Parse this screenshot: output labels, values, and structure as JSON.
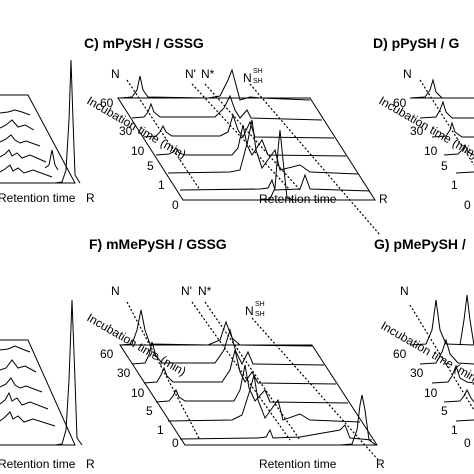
{
  "figure": {
    "panels": [
      {
        "id": "left-top",
        "title": "",
        "xlabel": "Retention time",
        "x_end_label": "R",
        "peak_labels": []
      },
      {
        "id": "C",
        "title": "C) mPySH / GSSG",
        "xlabel": "Retention time",
        "x_end_label": "R",
        "ylabel": "Incubation time (min)",
        "y_ticks": [
          "0",
          "1",
          "5",
          "10",
          "30",
          "60"
        ],
        "peak_labels": [
          "N",
          "N'",
          "N*",
          "N",
          "SH",
          "SH"
        ]
      },
      {
        "id": "D",
        "title": "D) pPySH / G",
        "ylabel": "Incubation time (min)",
        "y_ticks": [
          "0",
          "1",
          "5",
          "10",
          "30",
          "60"
        ],
        "peak_labels": [
          "N"
        ]
      },
      {
        "id": "left-bottom",
        "title": "",
        "xlabel": "Retention time",
        "x_end_label": "R",
        "peak_labels": []
      },
      {
        "id": "F",
        "title": "F) mMePySH / GSSG",
        "xlabel": "Retention time",
        "x_end_label": "R",
        "ylabel": "Incubation time (min)",
        "y_ticks": [
          "0",
          "1",
          "5",
          "10",
          "30",
          "60"
        ],
        "peak_labels": [
          "N",
          "N'",
          "N*",
          "N",
          "SH",
          "SH"
        ]
      },
      {
        "id": "G",
        "title": "G) pMePySH /",
        "ylabel": "Incubation time (min)",
        "y_ticks": [
          "0",
          "1",
          "5",
          "10",
          "30",
          "60"
        ],
        "peak_labels": [
          "N"
        ]
      }
    ]
  },
  "chart_data": [
    {
      "type": "line",
      "title": "C) mPySH / GSSG",
      "xlabel": "Retention time",
      "ylabel": "Incubation time (min)",
      "series": [
        {
          "name": "0",
          "peaks": [
            {
              "x": 0.8,
              "h": 0.4
            },
            {
              "x": 0.95,
              "h": 0.1
            }
          ]
        },
        {
          "name": "1",
          "peaks": [
            {
              "x": 0.1,
              "h": 0.05
            },
            {
              "x": 0.55,
              "h": 0.45
            },
            {
              "x": 0.7,
              "h": 0.3
            }
          ]
        },
        {
          "name": "5",
          "peaks": [
            {
              "x": 0.1,
              "h": 0.15
            },
            {
              "x": 0.45,
              "h": 0.3
            },
            {
              "x": 0.6,
              "h": 0.25
            }
          ]
        },
        {
          "name": "10",
          "peaks": [
            {
              "x": 0.1,
              "h": 0.2
            },
            {
              "x": 0.4,
              "h": 0.4
            },
            {
              "x": 0.55,
              "h": 0.3
            }
          ]
        },
        {
          "name": "30",
          "peaks": [
            {
              "x": 0.1,
              "h": 0.3
            },
            {
              "x": 0.35,
              "h": 0.45
            },
            {
              "x": 0.5,
              "h": 0.35
            }
          ]
        },
        {
          "name": "60",
          "peaks": [
            {
              "x": 0.1,
              "h": 0.45
            },
            {
              "x": 0.3,
              "h": 0.6
            },
            {
              "x": 0.45,
              "h": 0.4
            }
          ]
        }
      ]
    },
    {
      "type": "line",
      "title": "F) mMePySH / GSSG",
      "xlabel": "Retention time",
      "ylabel": "Incubation time (min)",
      "series": [
        {
          "name": "0",
          "peaks": [
            {
              "x": 0.85,
              "h": 0.5
            }
          ]
        },
        {
          "name": "1",
          "peaks": [
            {
              "x": 0.1,
              "h": 0.05
            },
            {
              "x": 0.55,
              "h": 0.35
            },
            {
              "x": 0.7,
              "h": 0.3
            }
          ]
        },
        {
          "name": "5",
          "peaks": [
            {
              "x": 0.1,
              "h": 0.15
            },
            {
              "x": 0.45,
              "h": 0.35
            },
            {
              "x": 0.6,
              "h": 0.2
            }
          ]
        },
        {
          "name": "10",
          "peaks": [
            {
              "x": 0.1,
              "h": 0.2
            },
            {
              "x": 0.4,
              "h": 0.4
            },
            {
              "x": 0.55,
              "h": 0.3
            }
          ]
        },
        {
          "name": "30",
          "peaks": [
            {
              "x": 0.1,
              "h": 0.35
            },
            {
              "x": 0.35,
              "h": 0.55
            },
            {
              "x": 0.5,
              "h": 0.35
            }
          ]
        },
        {
          "name": "60",
          "peaks": [
            {
              "x": 0.1,
              "h": 0.5
            },
            {
              "x": 0.3,
              "h": 0.45
            },
            {
              "x": 0.45,
              "h": 0.3
            }
          ]
        }
      ]
    }
  ]
}
